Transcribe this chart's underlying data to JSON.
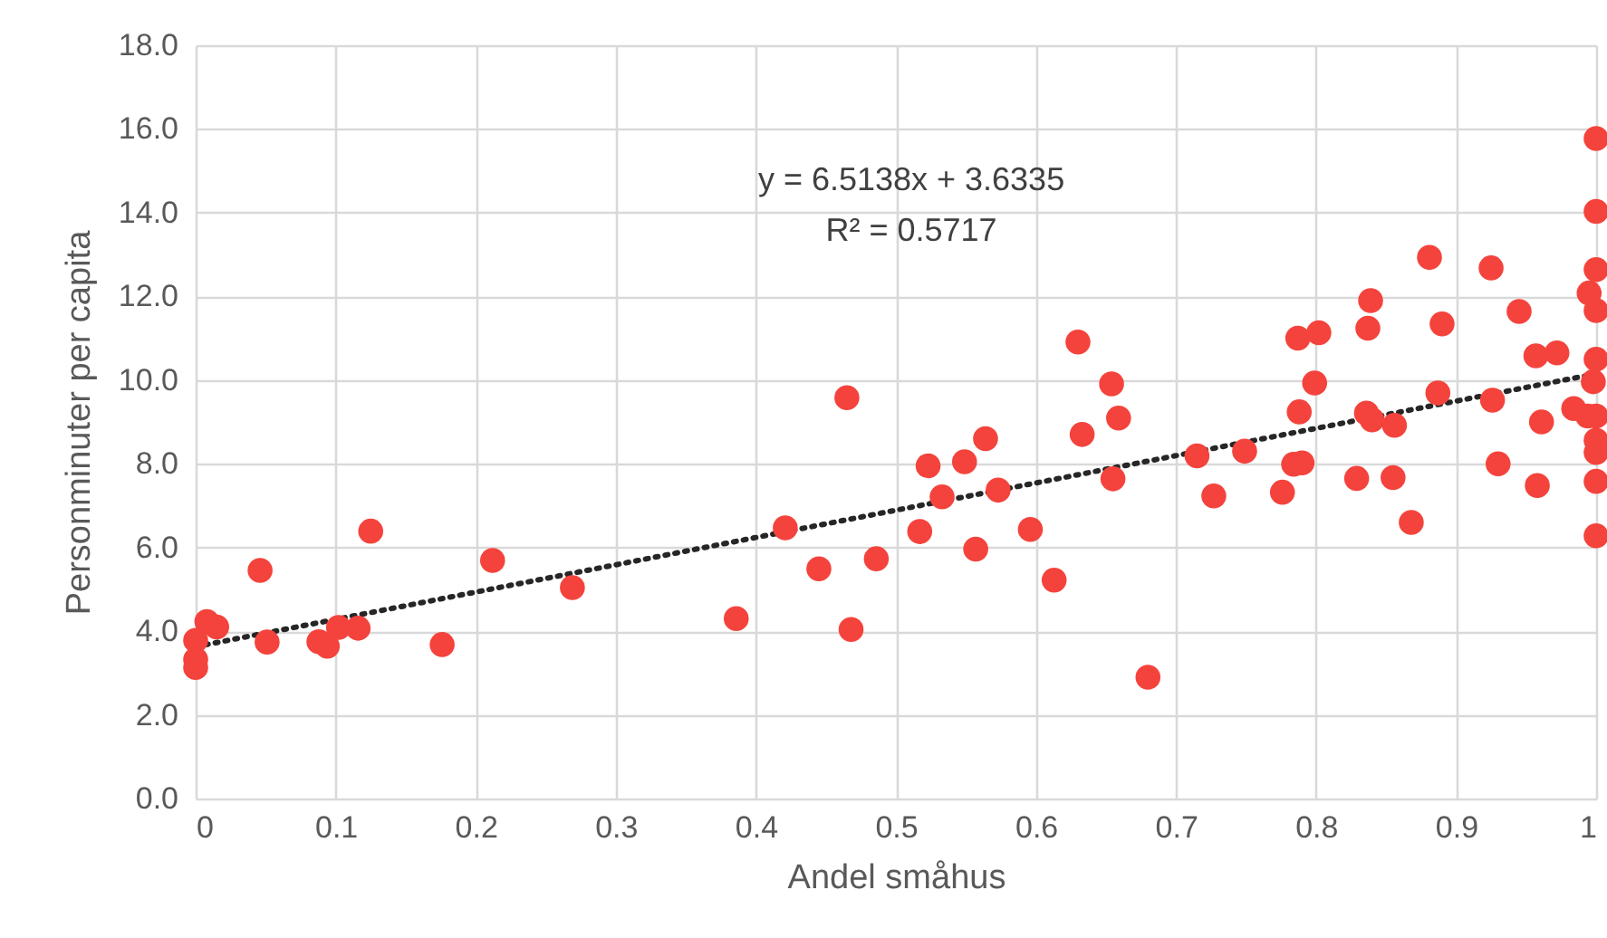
{
  "chart_data": {
    "type": "scatter",
    "xlabel": "Andel småhus",
    "ylabel": "Personminuter per capita",
    "annotations": [
      "y = 6.5138x + 3.6335",
      "R² = 0.5717"
    ],
    "xlim": [
      0,
      1
    ],
    "xticks": [
      {
        "value": 0,
        "label": "0"
      },
      0.1,
      0.2,
      0.3,
      0.4,
      0.5,
      0.6,
      0.7,
      0.8,
      0.9,
      {
        "value": 1,
        "label": "1"
      }
    ],
    "ylim": [
      0,
      18
    ],
    "yticks": [
      {
        "value": 0,
        "label": "0.0"
      },
      {
        "value": 2,
        "label": "2.0"
      },
      {
        "value": 4,
        "label": "4.0"
      },
      {
        "value": 6,
        "label": "6.0"
      },
      {
        "value": 8,
        "label": "8.0"
      },
      {
        "value": 10,
        "label": "10.0"
      },
      {
        "value": 12,
        "label": "12.0"
      },
      {
        "value": 14,
        "label": "14.0"
      },
      {
        "value": 16,
        "label": "16.0"
      },
      {
        "value": 18,
        "label": "18.0"
      }
    ],
    "grid": true,
    "marker": "circle",
    "series": [
      {
        "color": "#f4433c",
        "x": [
          0,
          0,
          0,
          0.008,
          0.015,
          0.046,
          0.051,
          0.088,
          0.094,
          0.102,
          0.116,
          0.125,
          0.176,
          0.212,
          0.269,
          0.386,
          0.421,
          0.445,
          0.465,
          0.468,
          0.486,
          0.517,
          0.523,
          0.533,
          0.549,
          0.557,
          0.564,
          0.573,
          0.596,
          0.613,
          0.63,
          0.633,
          0.654,
          0.659,
          0.655,
          0.68,
          0.715,
          0.727,
          0.749,
          0.787,
          0.802,
          0.799,
          0.788,
          0.784,
          0.79,
          0.776,
          0.839,
          0.837,
          0.836,
          0.84,
          0.856,
          0.829,
          0.855,
          0.868,
          0.881,
          0.89,
          0.887,
          0.925,
          0.945,
          0.926,
          0.93,
          0.958,
          0.961,
          0.957,
          0.972,
          0.984,
          0.994,
          0.995,
          1,
          1,
          1,
          1,
          0.998,
          1,
          1,
          1,
          1,
          1,
          1
        ],
        "values": [
          3.78,
          3.32,
          3.13,
          4.23,
          4.1,
          5.45,
          3.74,
          3.75,
          3.64,
          4.09,
          4.07,
          6.39,
          3.68,
          5.69,
          5.04,
          4.3,
          6.47,
          5.49,
          9.58,
          4.04,
          5.73,
          6.38,
          7.95,
          7.21,
          8.05,
          5.96,
          8.6,
          7.37,
          6.43,
          5.22,
          10.91,
          8.7,
          9.91,
          9.09,
          7.64,
          2.9,
          8.19,
          7.23,
          8.3,
          11.0,
          11.13,
          9.93,
          9.24,
          7.99,
          8.02,
          7.32,
          11.9,
          11.24,
          9.21,
          9.05,
          8.92,
          7.65,
          7.67,
          6.6,
          12.93,
          11.34,
          9.69,
          12.68,
          11.64,
          9.52,
          8.0,
          7.48,
          9.0,
          10.58,
          10.65,
          9.32,
          9.14,
          12.08,
          11.66,
          15.77,
          14.03,
          12.64,
          9.96,
          10.5,
          9.14,
          8.56,
          8.27,
          7.58,
          6.28
        ]
      },
      {
        "type": "line",
        "color": "#262626",
        "line_style": "dotted",
        "marker": "none",
        "x": [
          0,
          1
        ],
        "values": [
          3.63,
          10.15
        ]
      }
    ]
  }
}
